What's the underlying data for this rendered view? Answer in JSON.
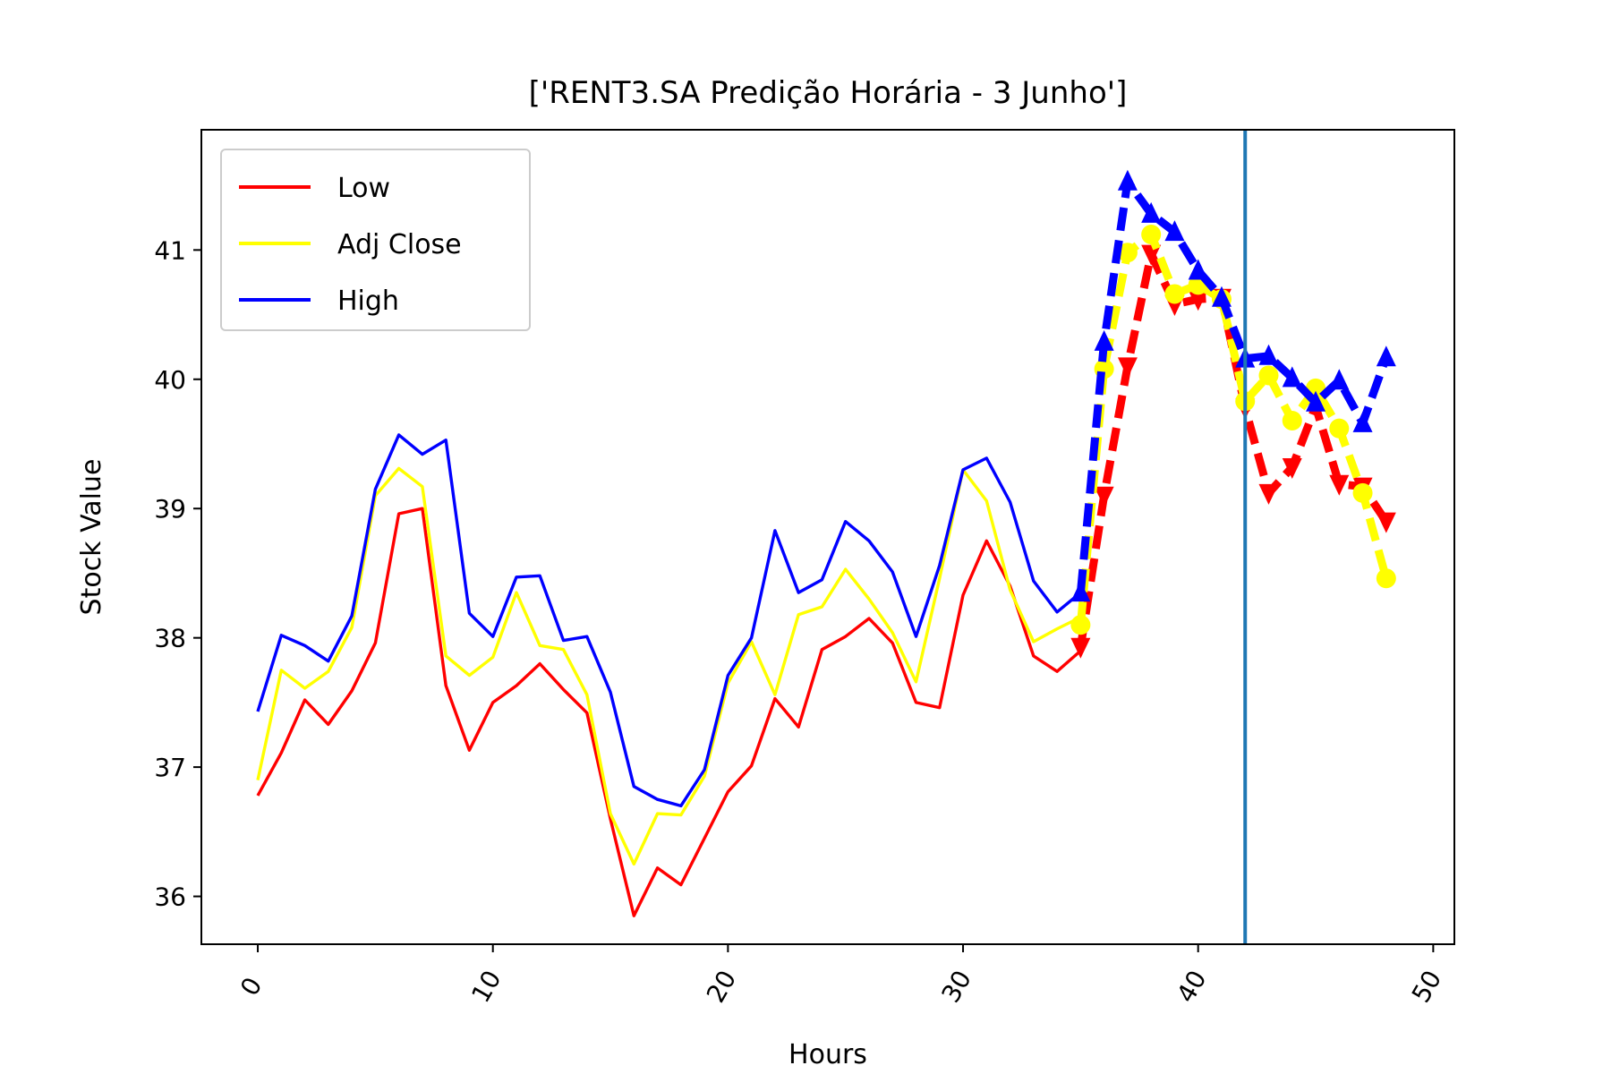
{
  "chart_data": {
    "type": "line",
    "title": "['RENT3.SA Predição Horária - 3 Junho']",
    "xlabel": "Hours",
    "ylabel": "Stock Value",
    "xlim": [
      -2.4,
      50.9
    ],
    "ylim": [
      35.63,
      41.93
    ],
    "xticks": [
      0,
      10,
      20,
      30,
      40,
      50
    ],
    "yticks": [
      36,
      37,
      38,
      39,
      40,
      41
    ],
    "grid": false,
    "legend": {
      "position": "top-left"
    },
    "series": [
      {
        "name": "Low",
        "color": "#ff0000",
        "style": "solid",
        "x": [
          0,
          1,
          2,
          3,
          4,
          5,
          6,
          7,
          8,
          9,
          10,
          11,
          12,
          13,
          14,
          15,
          16,
          17,
          18,
          19,
          20,
          21,
          22,
          23,
          24,
          25,
          26,
          27,
          28,
          29,
          30,
          31,
          32,
          33,
          34,
          35
        ],
        "values": [
          36.78,
          37.11,
          37.52,
          37.33,
          37.59,
          37.96,
          38.96,
          39.0,
          37.63,
          37.13,
          37.5,
          37.63,
          37.8,
          37.6,
          37.42,
          36.6,
          35.85,
          36.22,
          36.09,
          36.45,
          36.81,
          37.01,
          37.53,
          37.31,
          37.91,
          38.01,
          38.15,
          37.96,
          37.5,
          37.46,
          38.33,
          38.75,
          38.4,
          37.86,
          37.74,
          37.9
        ]
      },
      {
        "name": "Adj Close",
        "color": "#ffff00",
        "style": "solid",
        "x": [
          0,
          1,
          2,
          3,
          4,
          5,
          6,
          7,
          8,
          9,
          10,
          11,
          12,
          13,
          14,
          15,
          16,
          17,
          18,
          19,
          20,
          21,
          22,
          23,
          24,
          25,
          26,
          27,
          28,
          29,
          30,
          31,
          32,
          33,
          34,
          35
        ],
        "values": [
          36.9,
          37.75,
          37.61,
          37.74,
          38.08,
          39.1,
          39.31,
          39.17,
          37.86,
          37.71,
          37.85,
          38.35,
          37.94,
          37.91,
          37.56,
          36.64,
          36.25,
          36.64,
          36.63,
          36.93,
          37.65,
          37.97,
          37.56,
          38.18,
          38.24,
          38.53,
          38.3,
          38.04,
          37.66,
          38.46,
          39.3,
          39.06,
          38.37,
          37.97,
          38.07,
          38.16
        ]
      },
      {
        "name": "High",
        "color": "#0000ff",
        "style": "solid",
        "x": [
          0,
          1,
          2,
          3,
          4,
          5,
          6,
          7,
          8,
          9,
          10,
          11,
          12,
          13,
          14,
          15,
          16,
          17,
          18,
          19,
          20,
          21,
          22,
          23,
          24,
          25,
          26,
          27,
          28,
          29,
          30,
          31,
          32,
          33,
          34,
          35
        ],
        "values": [
          37.43,
          38.02,
          37.94,
          37.82,
          38.17,
          39.15,
          39.57,
          39.42,
          39.53,
          38.19,
          38.01,
          38.47,
          38.48,
          37.98,
          38.01,
          37.58,
          36.85,
          36.75,
          36.7,
          36.98,
          37.71,
          38.0,
          38.83,
          38.35,
          38.45,
          38.9,
          38.75,
          38.51,
          38.01,
          38.56,
          39.3,
          39.39,
          39.05,
          38.44,
          38.2,
          38.35
        ]
      },
      {
        "color": "#ff0000",
        "style": "dashed",
        "marker": "triangle-down",
        "x": [
          35,
          36,
          37,
          38,
          39,
          40,
          41,
          42,
          43,
          44,
          45,
          46,
          47,
          48
        ],
        "values": [
          37.93,
          39.1,
          40.1,
          40.97,
          40.58,
          40.62,
          40.63,
          39.78,
          39.12,
          39.32,
          39.79,
          39.19,
          39.17,
          38.9
        ]
      },
      {
        "color": "#ffff00",
        "style": "dashed",
        "marker": "circle",
        "x": [
          35,
          36,
          37,
          38,
          39,
          40,
          41,
          42,
          43,
          44,
          45,
          46,
          47,
          48
        ],
        "values": [
          38.1,
          40.08,
          40.98,
          41.12,
          40.66,
          40.73,
          40.62,
          39.83,
          40.03,
          39.68,
          39.93,
          39.62,
          39.12,
          38.46
        ]
      },
      {
        "color": "#0000ff",
        "style": "dashed",
        "marker": "triangle-up",
        "x": [
          35,
          36,
          37,
          38,
          39,
          40,
          41,
          42,
          43,
          44,
          45,
          46,
          47,
          48
        ],
        "values": [
          38.35,
          40.29,
          41.53,
          41.28,
          41.14,
          40.84,
          40.63,
          40.16,
          40.18,
          40.01,
          39.82,
          39.99,
          39.66,
          40.17
        ]
      }
    ],
    "vline": {
      "x": 42,
      "color": "#1f77b4"
    }
  }
}
